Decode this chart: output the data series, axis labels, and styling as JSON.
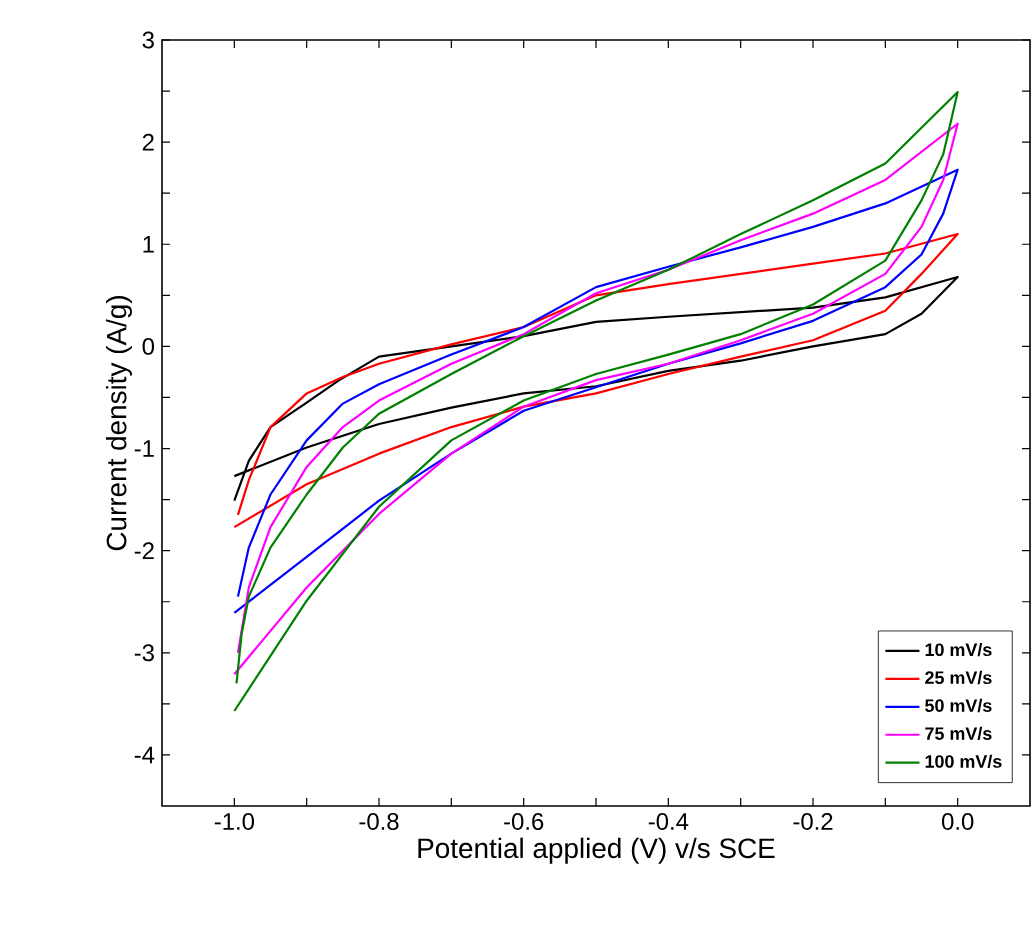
{
  "chart_data": {
    "type": "line",
    "xlabel": "Potential applied (V) v/s SCE",
    "ylabel": "Current density (A/g)",
    "xlim": [
      -1.1,
      0.1
    ],
    "ylim": [
      -4.5,
      3
    ],
    "xticks": [
      {
        "value": -1.0,
        "label": "-1.0"
      },
      {
        "value": -0.9,
        "label": null
      },
      {
        "value": -0.8,
        "label": "-0.8"
      },
      {
        "value": -0.7,
        "label": null
      },
      {
        "value": -0.6,
        "label": "-0.6"
      },
      {
        "value": -0.5,
        "label": null
      },
      {
        "value": -0.4,
        "label": "-0.4"
      },
      {
        "value": -0.3,
        "label": null
      },
      {
        "value": -0.2,
        "label": "-0.2"
      },
      {
        "value": -0.1,
        "label": null
      },
      {
        "value": 0.0,
        "label": "0.0"
      }
    ],
    "yticks": [
      3,
      {
        "value": 2.5,
        "label": null
      },
      2,
      {
        "value": 1.5,
        "label": null
      },
      1,
      {
        "value": 0.5,
        "label": null
      },
      0,
      {
        "value": -0.5,
        "label": null
      },
      -1,
      {
        "value": -1.5,
        "label": null
      },
      -2,
      {
        "value": -2.5,
        "label": null
      },
      -3,
      {
        "value": -3.5,
        "label": null
      },
      -4
    ],
    "grid": false,
    "legend": "bottom right",
    "marker": "none",
    "line_style": "solid",
    "series": [
      {
        "name": "10 mV/s",
        "color": "#000000",
        "x": [
          -1.0,
          -0.98,
          -0.95,
          -0.9,
          -0.855,
          -0.8,
          -0.6,
          -0.5,
          -0.4,
          -0.2,
          -0.1,
          0.0,
          -0.05,
          -0.1,
          -0.2,
          -0.3,
          -0.4,
          -0.5,
          -0.6,
          -0.7,
          -0.8,
          -0.9,
          -1.0
        ],
        "values": [
          -1.51,
          -1.12,
          -0.79,
          -0.55,
          -0.33,
          -0.1,
          0.1,
          0.24,
          0.29,
          0.38,
          0.48,
          0.68,
          0.32,
          0.12,
          0.0,
          -0.14,
          -0.24,
          -0.39,
          -0.46,
          -0.6,
          -0.76,
          -0.99,
          -1.27
        ]
      },
      {
        "name": "25 mV/s",
        "color": "#ff0000",
        "x": [
          -0.995,
          -0.98,
          -0.95,
          -0.9,
          -0.85,
          -0.8,
          -0.7,
          -0.6,
          -0.5,
          -0.4,
          -0.2,
          -0.1,
          0.0,
          -0.05,
          -0.1,
          -0.2,
          -0.3,
          -0.4,
          -0.5,
          -0.6,
          -0.7,
          -0.8,
          -0.9,
          -1.0
        ],
        "values": [
          -1.65,
          -1.31,
          -0.79,
          -0.46,
          -0.3,
          -0.17,
          0.02,
          0.19,
          0.5,
          0.61,
          0.81,
          0.91,
          1.1,
          0.71,
          0.35,
          0.06,
          -0.1,
          -0.27,
          -0.46,
          -0.59,
          -0.79,
          -1.05,
          -1.35,
          -1.77
        ]
      },
      {
        "name": "50 mV/s",
        "color": "#0000ff",
        "x": [
          -0.995,
          -0.98,
          -0.95,
          -0.9,
          -0.85,
          -0.8,
          -0.7,
          -0.6,
          -0.5,
          -0.4,
          -0.3,
          -0.2,
          -0.1,
          0.0,
          -0.02,
          -0.05,
          -0.1,
          -0.2,
          -0.3,
          -0.4,
          -0.5,
          -0.6,
          -0.7,
          -0.8,
          -0.9,
          -1.0
        ],
        "values": [
          -2.45,
          -1.97,
          -1.45,
          -0.92,
          -0.56,
          -0.37,
          -0.08,
          0.19,
          0.58,
          0.78,
          0.97,
          1.17,
          1.4,
          1.73,
          1.3,
          0.9,
          0.58,
          0.25,
          0.03,
          -0.17,
          -0.4,
          -0.63,
          -1.05,
          -1.51,
          -2.06,
          -2.61
        ]
      },
      {
        "name": "75 mV/s",
        "color": "#ff00ff",
        "x": [
          -0.995,
          -0.98,
          -0.95,
          -0.9,
          -0.85,
          -0.8,
          -0.7,
          -0.6,
          -0.5,
          -0.4,
          -0.3,
          -0.2,
          -0.1,
          0.0,
          -0.02,
          -0.05,
          -0.1,
          -0.2,
          -0.3,
          -0.4,
          -0.5,
          -0.6,
          -0.7,
          -0.8,
          -0.9,
          -1.0
        ],
        "values": [
          -3.0,
          -2.36,
          -1.77,
          -1.18,
          -0.79,
          -0.53,
          -0.17,
          0.12,
          0.52,
          0.75,
          1.04,
          1.3,
          1.63,
          2.18,
          1.63,
          1.17,
          0.71,
          0.32,
          0.06,
          -0.17,
          -0.33,
          -0.59,
          -1.05,
          -1.64,
          -2.36,
          -3.21
        ]
      },
      {
        "name": "100 mV/s",
        "color": "#008000",
        "x": [
          -0.997,
          -0.99,
          -0.98,
          -0.95,
          -0.9,
          -0.85,
          -0.8,
          -0.7,
          -0.6,
          -0.5,
          -0.4,
          -0.3,
          -0.2,
          -0.1,
          0.0,
          -0.02,
          -0.05,
          -0.1,
          -0.2,
          -0.3,
          -0.4,
          -0.5,
          -0.6,
          -0.7,
          -0.8,
          -0.9,
          -1.0
        ],
        "values": [
          -3.3,
          -2.82,
          -2.45,
          -1.97,
          -1.45,
          -0.99,
          -0.66,
          -0.27,
          0.1,
          0.45,
          0.75,
          1.1,
          1.43,
          1.79,
          2.49,
          1.88,
          1.43,
          0.84,
          0.41,
          0.12,
          -0.08,
          -0.27,
          -0.53,
          -0.92,
          -1.57,
          -2.49,
          -3.57
        ]
      }
    ]
  }
}
